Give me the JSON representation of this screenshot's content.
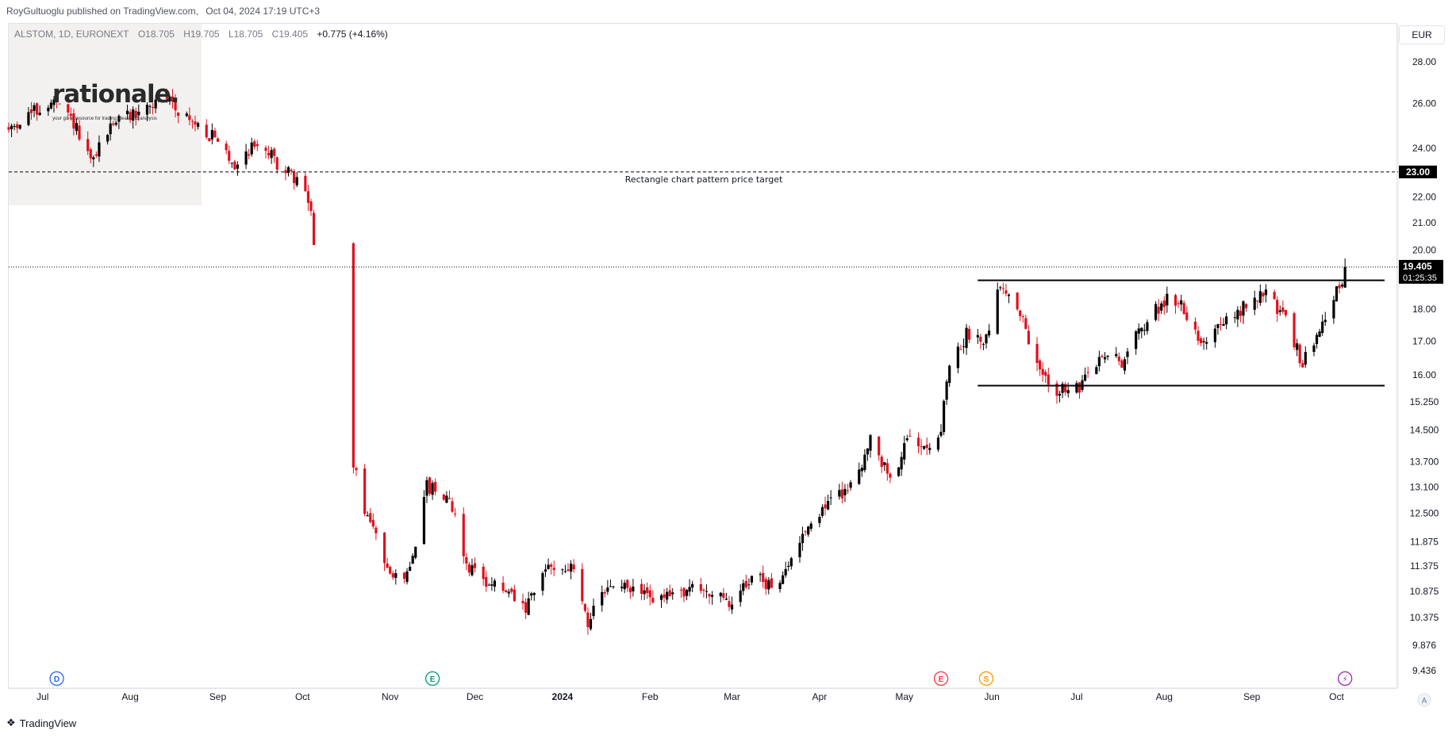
{
  "publish": {
    "author_line": "RoyGultuoglu published on TradingView.com,",
    "date_line": "Oct 04, 2024 17:19 UTC+3"
  },
  "symbol": {
    "name": "ALSTOM, 1D, EURONEXT",
    "open": "O18.705",
    "high": "H19.705",
    "low": "L18.705",
    "close": "C19.405",
    "change": "+0.775 (+4.16%)"
  },
  "currency": "EUR",
  "watermark": {
    "title": "rationale.",
    "subtitle": "your go-to resource for trading ideas and analysis"
  },
  "footer": {
    "brand": "TradingView",
    "icon": "tradingview-logo-icon"
  },
  "colors": {
    "up": "#000000",
    "down": "#e0101e",
    "grid": "#e0e3eb",
    "price_tag_bg": "#000000",
    "event_dividend": "#2962ff",
    "event_earnings_teal": "#089981",
    "event_earnings_red": "#f23645",
    "event_split": "#ff9800",
    "event_flash": "#9c27b0"
  },
  "chart_data": {
    "type": "candlestick",
    "symbol": "ALSTOM",
    "interval": "1D",
    "y_scale": "log",
    "ylim": [
      9.0,
      29.5
    ],
    "y_ticks": [
      "28.00",
      "26.00",
      "24.00",
      "22.00",
      "21.00",
      "20.00",
      "18.00",
      "17.00",
      "16.00",
      "15.250",
      "14.500",
      "13.700",
      "13.100",
      "12.500",
      "11.875",
      "11.375",
      "10.875",
      "10.375",
      "9.876",
      "9.436"
    ],
    "x_ticks": [
      "Jul",
      "Aug",
      "Sep",
      "Oct",
      "Nov",
      "Dec",
      "2024",
      "Feb",
      "Mar",
      "Apr",
      "May",
      "Jun",
      "Jul",
      "Aug",
      "Sep",
      "Oct"
    ],
    "x_range": [
      "2023-06-19",
      "2024-10-18"
    ],
    "tick_dates": [
      "2023-07-01",
      "2023-08-01",
      "2023-09-01",
      "2023-10-01",
      "2023-11-01",
      "2023-12-01",
      "2024-01-01",
      "2024-02-01",
      "2024-03-01",
      "2024-04-01",
      "2024-05-01",
      "2024-06-01",
      "2024-07-01",
      "2024-08-01",
      "2024-09-01",
      "2024-10-01"
    ],
    "path_anchors": [
      [
        "2023-06-19",
        24.8
      ],
      [
        "2023-06-26",
        25.5
      ],
      [
        "2023-07-05",
        26.0
      ],
      [
        "2023-07-12",
        25.1
      ],
      [
        "2023-07-18",
        23.3
      ],
      [
        "2023-07-26",
        25.2
      ],
      [
        "2023-08-04",
        25.6
      ],
      [
        "2023-08-14",
        26.3
      ],
      [
        "2023-08-22",
        25.2
      ],
      [
        "2023-08-30",
        24.5
      ],
      [
        "2023-09-07",
        23.3
      ],
      [
        "2023-09-15",
        24.3
      ],
      [
        "2023-09-21",
        23.5
      ],
      [
        "2023-09-27",
        22.8
      ],
      [
        "2023-10-02",
        22.3
      ],
      [
        "2023-10-04",
        21.3
      ],
      [
        "2023-10-05",
        20.2
      ],
      [
        "2023-10-19",
        13.6
      ],
      [
        "2023-10-23",
        12.6
      ],
      [
        "2023-10-30",
        11.5
      ],
      [
        "2023-11-06",
        11.0
      ],
      [
        "2023-11-10",
        11.9
      ],
      [
        "2023-11-14",
        13.1
      ],
      [
        "2023-11-22",
        12.9
      ],
      [
        "2023-11-28",
        11.4
      ],
      [
        "2023-12-05",
        11.1
      ],
      [
        "2023-12-13",
        10.8
      ],
      [
        "2023-12-19",
        10.5
      ],
      [
        "2023-12-27",
        11.4
      ],
      [
        "2024-01-05",
        11.3
      ],
      [
        "2024-01-10",
        10.3
      ],
      [
        "2024-01-18",
        11.0
      ],
      [
        "2024-01-26",
        10.9
      ],
      [
        "2024-02-05",
        10.7
      ],
      [
        "2024-02-13",
        10.9
      ],
      [
        "2024-02-21",
        10.9
      ],
      [
        "2024-02-29",
        10.6
      ],
      [
        "2024-03-08",
        11.2
      ],
      [
        "2024-03-13",
        11.0
      ],
      [
        "2024-03-20",
        11.2
      ],
      [
        "2024-03-26",
        12.1
      ],
      [
        "2024-04-05",
        12.8
      ],
      [
        "2024-04-12",
        13.1
      ],
      [
        "2024-04-19",
        14.2
      ],
      [
        "2024-04-26",
        13.3
      ],
      [
        "2024-05-03",
        14.3
      ],
      [
        "2024-05-10",
        14.2
      ],
      [
        "2024-05-14",
        14.3
      ],
      [
        "2024-05-16",
        15.9
      ],
      [
        "2024-05-23",
        17.2
      ],
      [
        "2024-05-30",
        17.1
      ],
      [
        "2024-06-03",
        18.8
      ],
      [
        "2024-06-10",
        18.1
      ],
      [
        "2024-06-17",
        16.2
      ],
      [
        "2024-06-24",
        15.6
      ],
      [
        "2024-07-02",
        15.6
      ],
      [
        "2024-07-10",
        16.6
      ],
      [
        "2024-07-17",
        16.4
      ],
      [
        "2024-07-24",
        17.4
      ],
      [
        "2024-08-01",
        18.3
      ],
      [
        "2024-08-07",
        18.2
      ],
      [
        "2024-08-14",
        17.0
      ],
      [
        "2024-08-22",
        17.5
      ],
      [
        "2024-08-30",
        18.1
      ],
      [
        "2024-09-06",
        18.6
      ],
      [
        "2024-09-13",
        17.6
      ],
      [
        "2024-09-19",
        16.3
      ],
      [
        "2024-09-25",
        17.4
      ],
      [
        "2024-10-01",
        18.7
      ],
      [
        "2024-10-03",
        18.6
      ],
      [
        "2024-10-04",
        19.4
      ]
    ],
    "last_candle": {
      "date": "2024-10-04",
      "open": 18.705,
      "high": 19.705,
      "low": 18.705,
      "close": 19.405
    },
    "last_price": 19.405,
    "countdown": "01:25:35",
    "price_target": 23.0,
    "price_target_label": "Rectangle chart pattern price target",
    "rectangle": {
      "upper": 18.95,
      "lower": 15.7,
      "from": "2024-05-27",
      "to": "2024-10-18"
    },
    "events": [
      {
        "letter": "D",
        "date": "2023-07-06",
        "color": "#2962ff"
      },
      {
        "letter": "E",
        "date": "2023-11-16",
        "color": "#089981"
      },
      {
        "letter": "E",
        "date": "2024-05-14",
        "color": "#f23645"
      },
      {
        "letter": "S",
        "date": "2024-05-30",
        "color": "#ff9800"
      },
      {
        "letter": "⚡",
        "date": "2024-10-04",
        "color": "#9c27b0"
      }
    ],
    "grid": false,
    "legend": "top-left"
  }
}
